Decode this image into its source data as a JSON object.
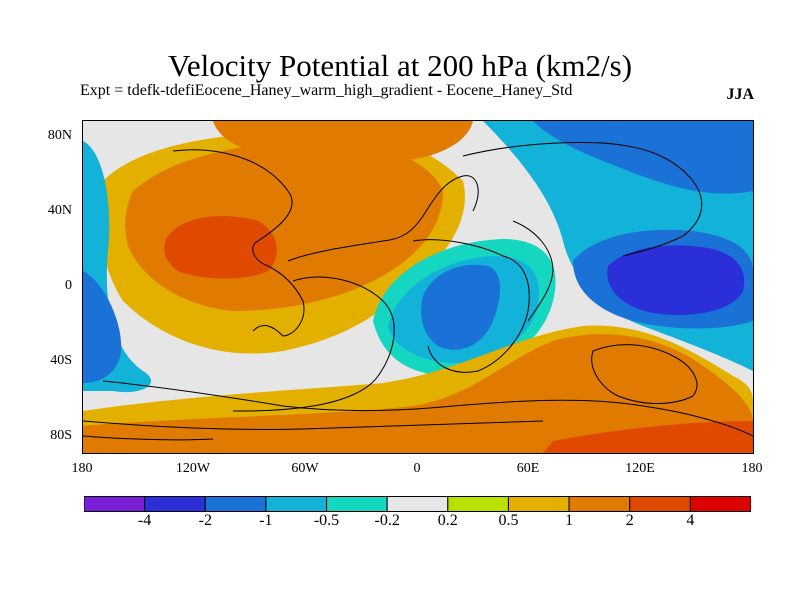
{
  "title": "Velocity Potential at 200 hPa (km2/s)",
  "subtitle": "Expt = tdefk-tdefiEocene_Haney_warm_high_gradient - Eocene_Haney_Std",
  "season": "JJA",
  "lat_ticks": [
    "80N",
    "40N",
    "0",
    "40S",
    "80S"
  ],
  "lon_ticks": [
    "180",
    "120W",
    "60W",
    "0",
    "60E",
    "120E",
    "180"
  ],
  "colorbar": {
    "labels": [
      "-4",
      "-2",
      "-1",
      "-0.5",
      "-0.2",
      "0.2",
      "0.5",
      "1",
      "2",
      "4"
    ],
    "colors": [
      "#7a1fd6",
      "#2a2fd8",
      "#1a72d6",
      "#12b2d9",
      "#15d6c0",
      "#e6e6e6",
      "#b9e000",
      "#e4b000",
      "#e07a00",
      "#e04a00",
      "#dc0000"
    ]
  }
}
